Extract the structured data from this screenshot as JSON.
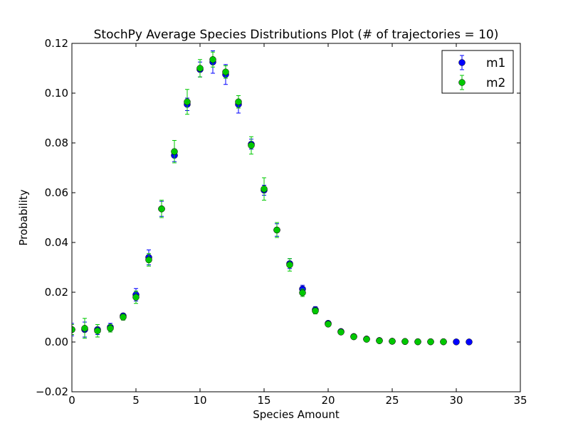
{
  "chart_data": {
    "type": "scatter",
    "title": "StochPy Average Species Distributions Plot (# of trajectories = 10)",
    "xlabel": "Species Amount",
    "ylabel": "Probability",
    "xlim": [
      0,
      35
    ],
    "ylim": [
      -0.02,
      0.12
    ],
    "x_ticks": [
      0,
      5,
      10,
      15,
      20,
      25,
      30,
      35
    ],
    "x_tick_labels": [
      "0",
      "5",
      "10",
      "15",
      "20",
      "25",
      "30",
      "35"
    ],
    "y_ticks": [
      -0.02,
      0.0,
      0.02,
      0.04,
      0.06,
      0.08,
      0.1,
      0.12
    ],
    "y_tick_labels": [
      "−0.02",
      "0.00",
      "0.02",
      "0.04",
      "0.06",
      "0.08",
      "0.10",
      "0.12"
    ],
    "grid": false,
    "legend_position": "top-right",
    "series": [
      {
        "name": "m1",
        "color": "#0000ff",
        "x": [
          0,
          1,
          2,
          3,
          4,
          5,
          6,
          7,
          8,
          9,
          10,
          11,
          12,
          13,
          14,
          15,
          16,
          17,
          18,
          19,
          20,
          21,
          22,
          23,
          24,
          25,
          26,
          27,
          28,
          29,
          30,
          31
        ],
        "y": [
          0.005,
          0.005,
          0.005,
          0.006,
          0.0105,
          0.019,
          0.034,
          0.0535,
          0.075,
          0.0955,
          0.1095,
          0.1125,
          0.1075,
          0.0955,
          0.0795,
          0.061,
          0.045,
          0.0315,
          0.0213,
          0.013,
          0.0075,
          0.0042,
          0.0022,
          0.0012,
          0.0006,
          0.0003,
          0.0002,
          0.0001,
          0.0001,
          0.0001,
          5e-05,
          3e-05
        ],
        "err": [
          0.0025,
          0.003,
          0.002,
          0.0015,
          0.001,
          0.0025,
          0.003,
          0.003,
          0.0025,
          0.0025,
          0.003,
          0.0045,
          0.004,
          0.0035,
          0.002,
          0.002,
          0.0025,
          0.002,
          0.0015,
          0.0012,
          0.0008,
          0.0005,
          0.0004,
          0.0003,
          0.0002,
          0.0001,
          0.0001,
          0.0001,
          0.0001,
          0.0001,
          5e-05,
          3e-05
        ]
      },
      {
        "name": "m2",
        "color": "#00c800",
        "x": [
          0,
          1,
          2,
          3,
          4,
          5,
          6,
          7,
          8,
          9,
          10,
          11,
          12,
          13,
          14,
          15,
          16,
          17,
          18,
          19,
          20,
          21,
          22,
          23,
          24,
          25,
          26,
          27,
          28,
          29
        ],
        "y": [
          0.005,
          0.0055,
          0.0045,
          0.0055,
          0.01,
          0.018,
          0.033,
          0.0535,
          0.0765,
          0.0965,
          0.11,
          0.1135,
          0.1085,
          0.0965,
          0.079,
          0.0615,
          0.045,
          0.031,
          0.0198,
          0.0125,
          0.0072,
          0.004,
          0.0021,
          0.0011,
          0.0005,
          0.0003,
          0.0002,
          0.0001,
          0.0001,
          0.0001
        ],
        "err": [
          0.002,
          0.004,
          0.0025,
          0.0015,
          0.0012,
          0.0025,
          0.0025,
          0.0035,
          0.0045,
          0.005,
          0.0035,
          0.003,
          0.0025,
          0.0025,
          0.0035,
          0.0045,
          0.003,
          0.0025,
          0.0015,
          0.0012,
          0.0008,
          0.0005,
          0.0004,
          0.0003,
          0.0002,
          0.0001,
          0.0001,
          0.0001,
          0.0001,
          0.0001
        ]
      }
    ]
  }
}
